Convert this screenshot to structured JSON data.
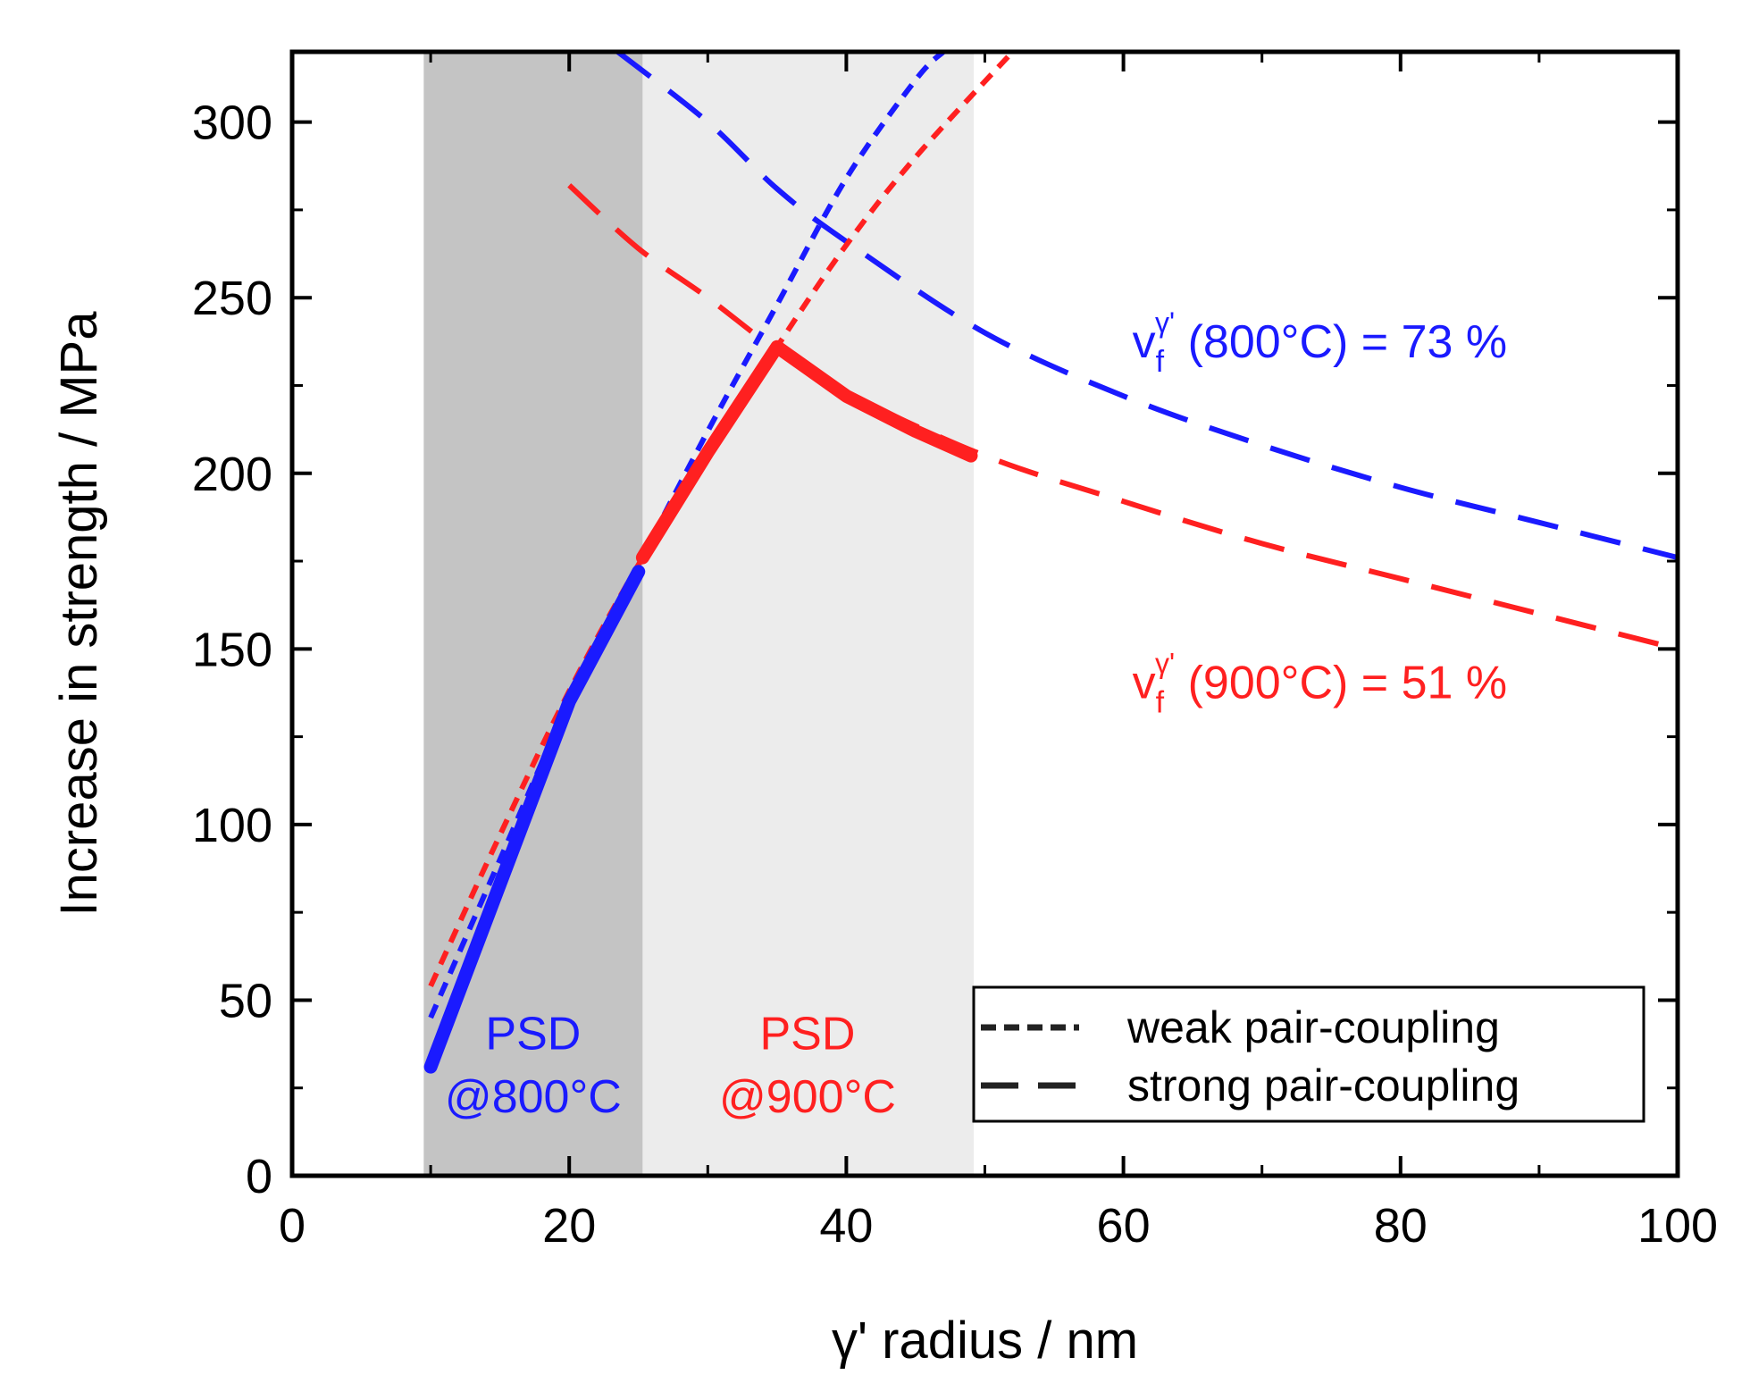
{
  "chart_data": {
    "type": "line",
    "xlabel": "γ' radius / nm",
    "ylabel": "Increase in strength / MPa",
    "xlim": [
      0,
      100
    ],
    "ylim": [
      0,
      320
    ],
    "xticks": [
      0,
      20,
      40,
      60,
      80,
      100
    ],
    "yticks": [
      0,
      50,
      100,
      150,
      200,
      250,
      300
    ],
    "xtick_labels": [
      "0",
      "20",
      "40",
      "60",
      "80",
      "100"
    ],
    "ytick_labels": [
      "0",
      "50",
      "100",
      "150",
      "200",
      "250",
      "300"
    ],
    "grid": false,
    "shaded_regions": [
      {
        "name": "PSD @800°C",
        "x": [
          9.5,
          25.3
        ],
        "color": "#c4c4c4"
      },
      {
        "name": "PSD @900°C",
        "x": [
          25.3,
          49.2
        ],
        "color": "#ececec"
      }
    ],
    "series": [
      {
        "name": "800°C weak pair-coupling",
        "style": "short-dash",
        "color": "#1a1aff",
        "x": [
          10,
          15,
          20,
          25,
          30,
          35,
          40,
          45,
          47
        ],
        "y": [
          45,
          90,
          135,
          174,
          212,
          248,
          284,
          312,
          320
        ]
      },
      {
        "name": "800°C strong pair-coupling",
        "style": "long-dash",
        "color": "#1a1aff",
        "x": [
          23.5,
          30,
          35,
          40,
          50,
          60,
          70,
          80,
          90,
          100
        ],
        "y": [
          320,
          300,
          281,
          266,
          240,
          222,
          208,
          196,
          186,
          176
        ]
      },
      {
        "name": "900°C weak pair-coupling",
        "style": "short-dash",
        "color": "#ff2020",
        "x": [
          10,
          15,
          20,
          25,
          30,
          35,
          40,
          45,
          52
        ],
        "y": [
          54,
          97,
          138,
          174,
          205,
          236,
          265,
          290,
          320
        ]
      },
      {
        "name": "900°C strong pair-coupling",
        "style": "long-dash",
        "color": "#ff2020",
        "x": [
          20,
          25,
          30,
          35,
          40,
          50,
          60,
          70,
          80,
          90,
          100
        ],
        "y": [
          282,
          264,
          250,
          235,
          223,
          205,
          192,
          180,
          170,
          160,
          150
        ]
      },
      {
        "name": "800°C PSD effective",
        "style": "solid-thick",
        "color": "#1a1aff",
        "x": [
          10,
          15,
          20,
          25
        ],
        "y": [
          31,
          83,
          135,
          172
        ]
      },
      {
        "name": "900°C PSD effective",
        "style": "solid-thick",
        "color": "#ff2020",
        "x": [
          25.3,
          30,
          35,
          40,
          45,
          49
        ],
        "y": [
          176,
          206,
          236,
          222,
          212,
          205
        ]
      }
    ],
    "annotations": [
      {
        "id": "psd800",
        "lines": [
          "PSD",
          "@800°C"
        ],
        "color": "#1a1aff",
        "x": 17.4,
        "y": [
          36,
          18
        ]
      },
      {
        "id": "psd900",
        "lines": [
          "PSD",
          "@900°C"
        ],
        "color": "#ff2020",
        "x": 37.2,
        "y": [
          36,
          18
        ]
      },
      {
        "id": "vf800",
        "prefix": "v",
        "sub": "f",
        "sup": "γ'",
        "rest": " (800°C) = 73 %",
        "color": "#1a1aff",
        "x": 60,
        "y": 233
      },
      {
        "id": "vf900",
        "prefix": "v",
        "sub": "f",
        "sup": "γ'",
        "rest": " (900°C) = 51 %",
        "color": "#ff2020",
        "x": 60,
        "y": 136
      }
    ],
    "legend": {
      "position": "bottom-right",
      "entries": [
        {
          "label": "weak pair-coupling",
          "style": "short-dash"
        },
        {
          "label": "strong pair-coupling",
          "style": "long-dash"
        }
      ]
    }
  }
}
